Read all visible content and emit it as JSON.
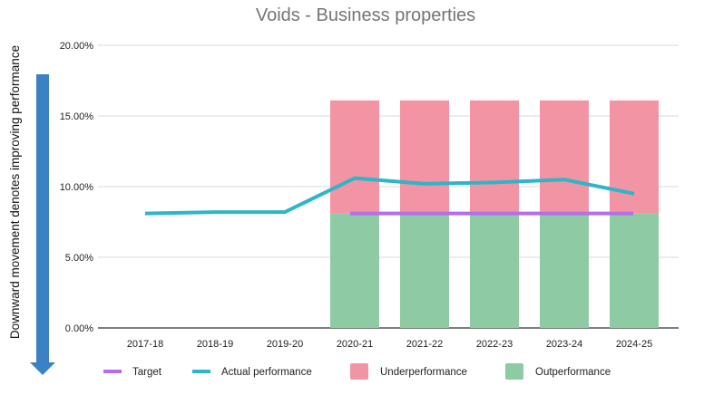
{
  "chart_data": {
    "type": "bar",
    "title": "Voids - Business properties",
    "side_note": "Downward movement denotes improving performance",
    "categories": [
      "2017-18",
      "2018-19",
      "2019-20",
      "2020-21",
      "2021-22",
      "2022-23",
      "2023-24",
      "2024-25"
    ],
    "y_tick_labels": [
      "0.00%",
      "5.00%",
      "10.00%",
      "15.00%",
      "20.00%"
    ],
    "y_ticks": [
      0,
      5,
      10,
      15,
      20
    ],
    "ylim": [
      0,
      20
    ],
    "grid": true,
    "legend_position": "bottom",
    "series": [
      {
        "name": "Target",
        "kind": "line",
        "color": "#b36ee8",
        "values": [
          null,
          null,
          null,
          8.1,
          8.1,
          8.1,
          8.1,
          8.1
        ]
      },
      {
        "name": "Actual performance",
        "kind": "line",
        "color": "#2fb5c8",
        "values": [
          8.1,
          8.2,
          8.2,
          10.6,
          10.2,
          10.3,
          10.5,
          9.5
        ]
      },
      {
        "name": "Underperformance",
        "kind": "stacked-bar",
        "color": "#f294a3",
        "values": [
          null,
          null,
          null,
          8.0,
          8.0,
          8.0,
          8.0,
          8.0
        ]
      },
      {
        "name": "Outperformance",
        "kind": "stacked-bar",
        "color": "#8ecaa3",
        "values": [
          null,
          null,
          null,
          8.1,
          8.1,
          8.1,
          8.1,
          8.1
        ]
      }
    ],
    "arrow_color": "#3b82c4"
  }
}
